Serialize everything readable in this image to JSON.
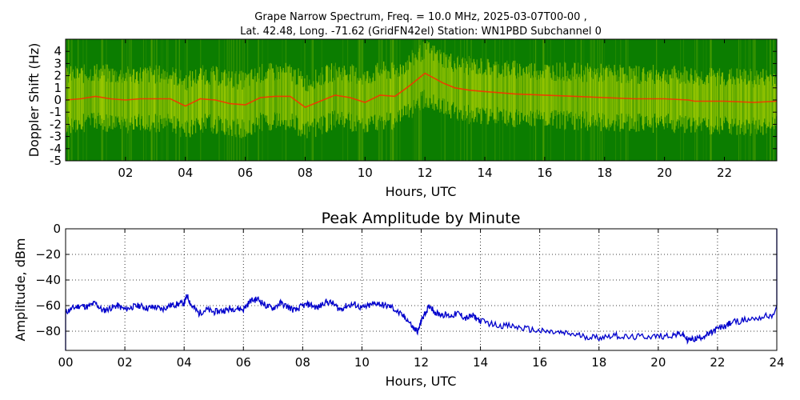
{
  "figure": {
    "suptitle_line1": "Grape Narrow Spectrum, Freq. = 10.0 MHz, 2025-03-07T00-00 ,",
    "suptitle_line2": "Lat.  42.48, Long. -71.62 (GridFN42el) Station: WN1PBD Subchannel 0"
  },
  "chart_data": [
    {
      "type": "heatmap",
      "title": "",
      "xlabel": "Hours, UTC",
      "ylabel": "Doppler Shift (Hz)",
      "xlim": [
        0,
        23.75
      ],
      "ylim": [
        -5,
        5
      ],
      "xticks": [
        "02",
        "04",
        "06",
        "08",
        "10",
        "12",
        "14",
        "16",
        "18",
        "20",
        "22"
      ],
      "xtick_values": [
        2,
        4,
        6,
        8,
        10,
        12,
        14,
        16,
        18,
        20,
        22
      ],
      "yticks": [
        "4",
        "3",
        "2",
        "1",
        "0",
        "-1",
        "-2",
        "-3",
        "-4",
        "-5"
      ],
      "ytick_values": [
        4,
        3,
        2,
        1,
        0,
        -1,
        -2,
        -3,
        -4,
        -5
      ],
      "background_color": "#0b7d00",
      "colors": {
        "low": "#0b7d00",
        "mid": "#e6f000",
        "high": "#ff2a00"
      },
      "peak_trace": {
        "x": [
          0,
          0.5,
          1,
          1.5,
          2,
          2.5,
          3,
          3.5,
          4,
          4.5,
          5,
          5.5,
          6,
          6.5,
          7,
          7.5,
          8,
          8.5,
          9,
          9.5,
          10,
          10.5,
          11,
          11.5,
          12,
          12.3,
          12.6,
          13,
          13.5,
          14,
          15,
          16,
          17,
          18,
          19,
          20,
          20.8,
          21,
          22,
          23,
          23.75
        ],
        "y": [
          0,
          0.1,
          0.3,
          0.1,
          0,
          0.1,
          0.1,
          0.1,
          -0.5,
          0.1,
          0,
          -0.3,
          -0.4,
          0.2,
          0.3,
          0.3,
          -0.6,
          -0.1,
          0.4,
          0.2,
          -0.2,
          0.4,
          0.3,
          1.2,
          2.2,
          1.8,
          1.4,
          1.0,
          0.8,
          0.7,
          0.5,
          0.4,
          0.3,
          0.2,
          0.1,
          0.1,
          0.0,
          -0.1,
          -0.1,
          -0.2,
          -0.1
        ]
      }
    },
    {
      "type": "line",
      "title": "Peak Amplitude by Minute",
      "xlabel": "Hours, UTC",
      "ylabel": "Amplitude, dBm",
      "xlim": [
        0,
        24
      ],
      "ylim": [
        -95,
        0
      ],
      "xticks": [
        "00",
        "02",
        "04",
        "06",
        "08",
        "10",
        "12",
        "14",
        "16",
        "18",
        "20",
        "22",
        "24"
      ],
      "xtick_values": [
        0,
        2,
        4,
        6,
        8,
        10,
        12,
        14,
        16,
        18,
        20,
        22,
        24
      ],
      "yticks": [
        "0",
        "−20",
        "−40",
        "−60",
        "−80"
      ],
      "ytick_values": [
        0,
        -20,
        -40,
        -60,
        -80
      ],
      "grid": true,
      "line_color": "#0000cc",
      "series": [
        {
          "x": [
            0,
            0.25,
            0.5,
            0.75,
            1,
            1.25,
            1.5,
            1.75,
            2,
            2.25,
            2.5,
            2.75,
            3,
            3.25,
            3.5,
            3.75,
            4,
            4.1,
            4.25,
            4.5,
            4.75,
            5,
            5.25,
            5.5,
            5.75,
            6,
            6.25,
            6.5,
            6.75,
            7,
            7.25,
            7.5,
            7.75,
            8,
            8.25,
            8.5,
            8.75,
            9,
            9.25,
            9.5,
            9.75,
            10,
            10.25,
            10.5,
            10.75,
            11,
            11.25,
            11.5,
            11.75,
            11.9,
            12,
            12.15,
            12.3,
            12.5,
            12.75,
            13,
            13.25,
            13.5,
            13.75,
            14,
            14.5,
            15,
            15.5,
            16,
            16.5,
            17,
            17.5,
            18,
            18.5,
            19,
            19.5,
            20,
            20.5,
            20.8,
            21,
            21.25,
            21.5,
            21.75,
            22,
            22.25,
            22.5,
            23,
            23.5,
            23.9
          ],
          "y": [
            -65,
            -62,
            -60,
            -61,
            -58,
            -64,
            -62,
            -60,
            -63,
            -61,
            -60,
            -62,
            -61,
            -63,
            -60,
            -59,
            -58,
            -52,
            -60,
            -66,
            -63,
            -65,
            -64,
            -63,
            -62,
            -63,
            -56,
            -55,
            -60,
            -62,
            -58,
            -61,
            -64,
            -60,
            -59,
            -62,
            -57,
            -58,
            -63,
            -60,
            -59,
            -62,
            -60,
            -58,
            -60,
            -61,
            -66,
            -70,
            -78,
            -80,
            -72,
            -65,
            -60,
            -66,
            -67,
            -68,
            -66,
            -70,
            -68,
            -72,
            -75,
            -76,
            -78,
            -80,
            -81,
            -82,
            -84,
            -85,
            -83,
            -85,
            -84,
            -84,
            -83,
            -82,
            -87,
            -86,
            -84,
            -82,
            -78,
            -76,
            -73,
            -71,
            -69,
            -67
          ]
        }
      ]
    }
  ]
}
